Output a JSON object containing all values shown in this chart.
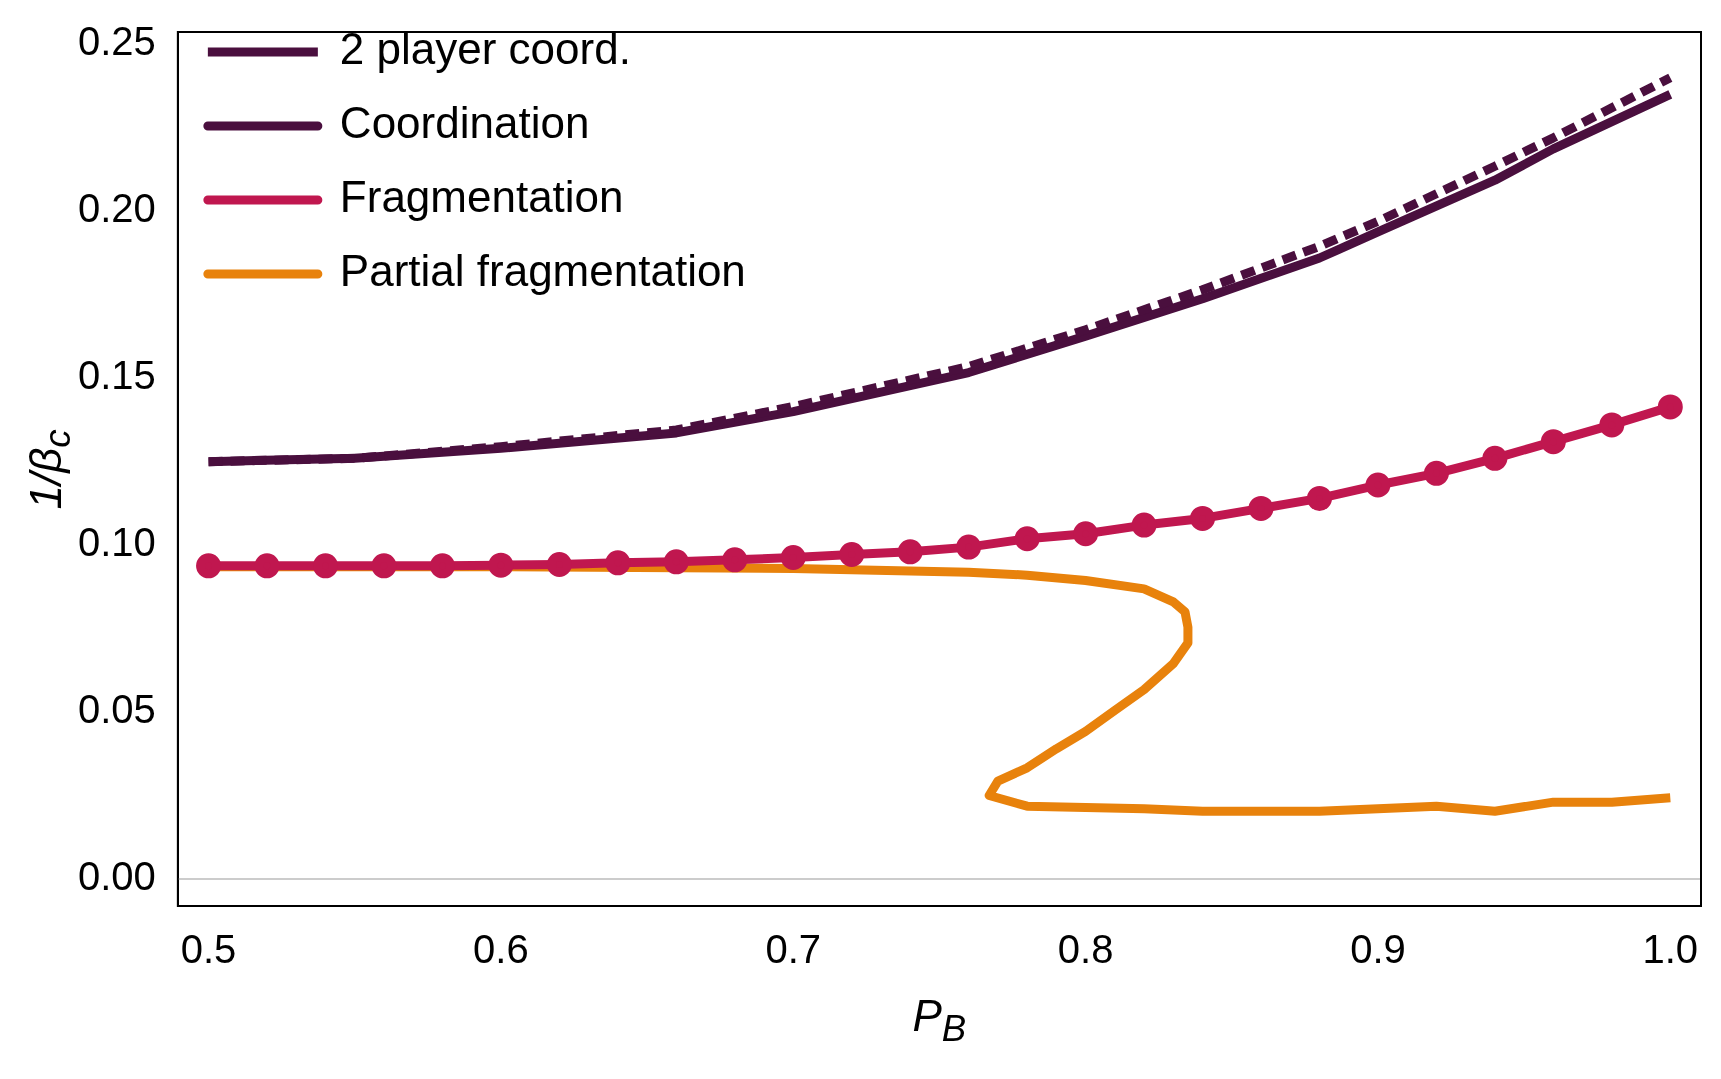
{
  "chart_data": {
    "type": "line",
    "xlabel": "P$_{B}$",
    "ylabel": "1/β$_{c}$",
    "xlim": [
      0.4895,
      1.0105
    ],
    "ylim": [
      -0.0081,
      0.2537
    ],
    "xticks": [
      {
        "value": 0.5,
        "label": "0.5"
      },
      0.6,
      0.7,
      0.8,
      0.9,
      {
        "value": 1,
        "label": "1.0"
      }
    ],
    "yticks": [
      {
        "value": 0,
        "label": "0.00"
      },
      0.05,
      {
        "value": 0.1,
        "label": "0.10"
      },
      0.15,
      {
        "value": 0.2,
        "label": "0.20"
      },
      0.25
    ],
    "grid": false,
    "legend": "top left",
    "ref_lines": [
      {
        "axis": "y",
        "value": 0,
        "color": "#cccccc"
      }
    ],
    "series": [
      {
        "name": "2 player coord.",
        "color": "#4a0f3e",
        "line_style": "dashed",
        "marker": "none",
        "x": [
          0.5,
          0.55,
          0.6,
          0.66,
          0.7,
          0.76,
          0.8,
          0.84,
          0.88,
          0.9,
          0.94,
          0.96,
          1.0
        ],
        "values": [
          0.125,
          0.126,
          0.1295,
          0.1345,
          0.1415,
          0.1535,
          0.1645,
          0.1765,
          0.1895,
          0.197,
          0.2135,
          0.222,
          0.24
        ]
      },
      {
        "name": "Coordination",
        "color": "#4a0f3e",
        "line_style": "solid",
        "marker": "none",
        "x": [
          0.5,
          0.55,
          0.6,
          0.66,
          0.7,
          0.76,
          0.8,
          0.84,
          0.88,
          0.9,
          0.94,
          0.96,
          1.0
        ],
        "values": [
          0.125,
          0.126,
          0.129,
          0.1336,
          0.14,
          0.1517,
          0.1626,
          0.1738,
          0.186,
          0.1938,
          0.2093,
          0.2187,
          0.235
        ]
      },
      {
        "name": "Fragmentation",
        "color": "#c0174f",
        "line_style": "solid",
        "marker": "circle",
        "x": [
          0.5,
          0.52,
          0.54,
          0.56,
          0.58,
          0.6,
          0.62,
          0.64,
          0.66,
          0.68,
          0.7,
          0.72,
          0.74,
          0.76,
          0.78,
          0.8,
          0.82,
          0.84,
          0.86,
          0.88,
          0.9,
          0.92,
          0.94,
          0.96,
          0.98,
          1.0
        ],
        "values": [
          0.0938,
          0.0938,
          0.0938,
          0.0938,
          0.0938,
          0.094,
          0.0942,
          0.0947,
          0.095,
          0.0956,
          0.0963,
          0.0972,
          0.098,
          0.0994,
          0.1019,
          0.1034,
          0.106,
          0.108,
          0.111,
          0.114,
          0.118,
          0.1215,
          0.126,
          0.131,
          0.136,
          0.1414
        ]
      },
      {
        "name": "Partial fragmentation",
        "color": "#e8820c",
        "line_style": "solid",
        "marker": "none",
        "x": [
          0.5,
          0.6,
          0.7,
          0.76,
          0.78,
          0.8,
          0.82,
          0.83,
          0.834,
          0.835,
          0.835,
          0.83,
          0.82,
          0.81,
          0.8,
          0.79,
          0.78,
          0.77,
          0.767,
          0.78,
          0.82,
          0.84,
          0.88,
          0.92,
          0.94,
          0.96,
          0.98,
          1.0
        ],
        "values": [
          0.0935,
          0.0935,
          0.093,
          0.0919,
          0.091,
          0.0894,
          0.0869,
          0.083,
          0.08,
          0.0754,
          0.0707,
          0.0645,
          0.0567,
          0.0505,
          0.0442,
          0.039,
          0.0333,
          0.0293,
          0.025,
          0.0218,
          0.021,
          0.0203,
          0.0203,
          0.0218,
          0.0203,
          0.023,
          0.023,
          0.0243
        ]
      }
    ]
  }
}
